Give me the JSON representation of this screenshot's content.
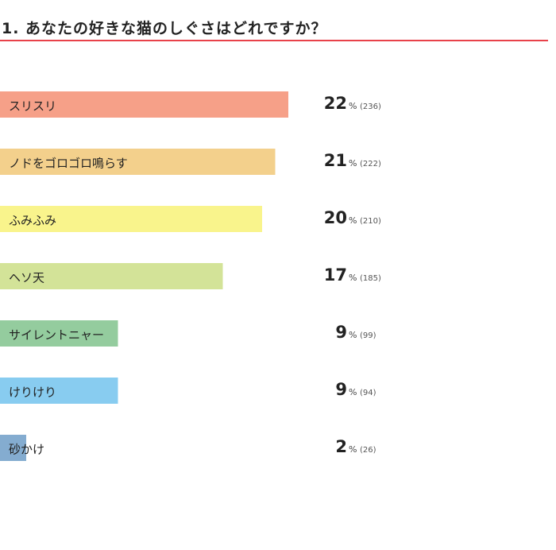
{
  "question": {
    "title": "1. あなたの好きな猫のしぐさはどれですか？"
  },
  "chart_data": {
    "type": "bar",
    "orientation": "horizontal",
    "title": "1. あなたの好きな猫のしぐさはどれですか？",
    "categories": [
      "スリスリ",
      "ノドをゴロゴロ鳴らす",
      "ふみふみ",
      "ヘソ天",
      "サイレントニャー",
      "けりけり",
      "砂かけ"
    ],
    "values": [
      22,
      21,
      20,
      17,
      9,
      9,
      2
    ],
    "counts": [
      236,
      222,
      210,
      185,
      99,
      94,
      26
    ],
    "percent_unit": "%",
    "colors": [
      "#f6a088",
      "#f3d08c",
      "#f9f48c",
      "#d3e398",
      "#94cc9e",
      "#88ccf0",
      "#84acd0"
    ],
    "grid": false,
    "legend": "none"
  }
}
